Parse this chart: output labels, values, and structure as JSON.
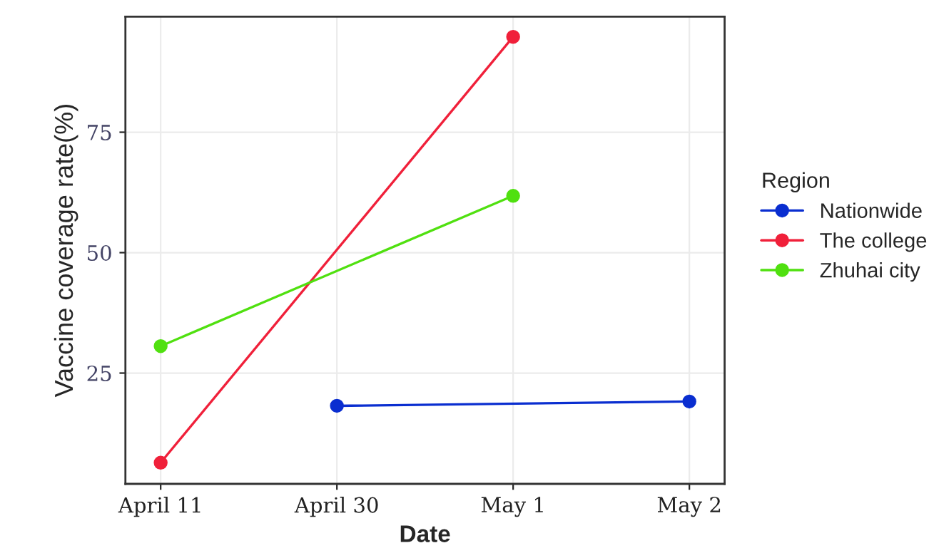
{
  "chart_data": {
    "type": "line",
    "xlabel": "Date",
    "ylabel": "Vaccine coverage rate(%)",
    "legend_title": "Region",
    "categories": [
      "April 11",
      "April 30",
      "May 1",
      "May 2"
    ],
    "series": [
      {
        "name": "Nationwide",
        "color": "#0a2ed0",
        "values": [
          null,
          18.2,
          null,
          19.1
        ]
      },
      {
        "name": "The college",
        "color": "#f0203a",
        "values": [
          6.4,
          null,
          94.8,
          null
        ]
      },
      {
        "name": "Zhuhai city",
        "color": "#50e010",
        "values": [
          30.6,
          null,
          61.8,
          null
        ]
      }
    ],
    "ylim": [
      2,
      99
    ],
    "yticks": [
      25,
      50,
      75
    ],
    "grid": true,
    "legend": "right",
    "marker": "circle",
    "line_style": "solid"
  }
}
